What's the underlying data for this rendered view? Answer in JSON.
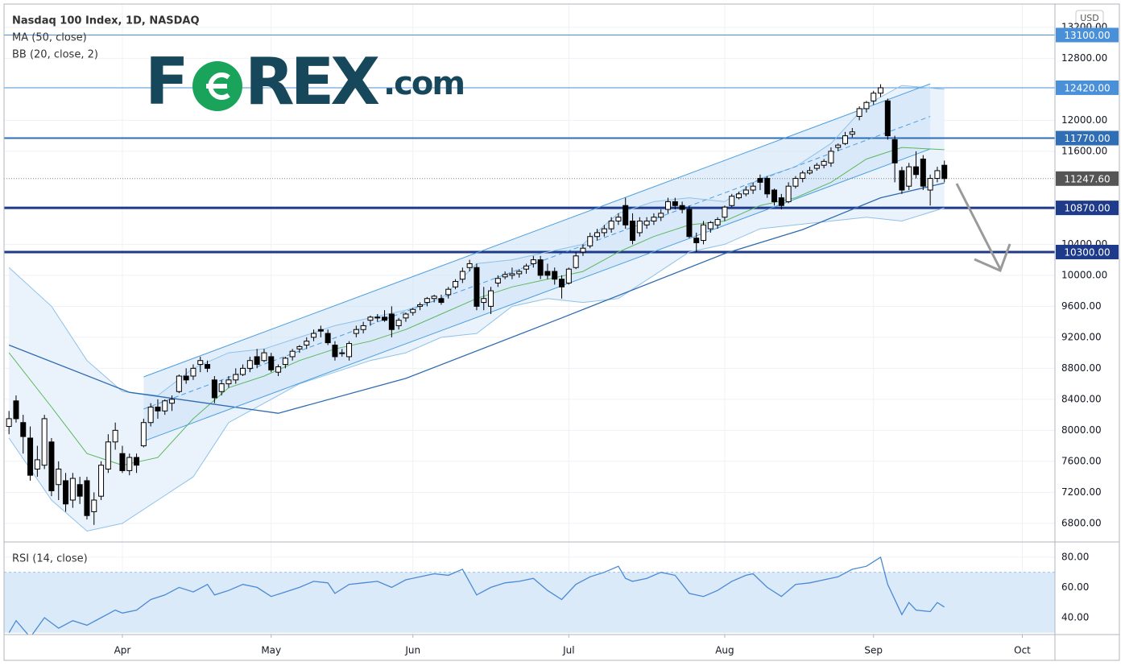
{
  "chart_data": {
    "type": "candlestick",
    "title": "Nasdaq 100 Index, 1D, NASDAQ",
    "currency": "USD",
    "logo": {
      "left": "F",
      "right": "REX",
      "suffix": ".com"
    },
    "x": [
      -16,
      -15,
      -14,
      -13,
      -12,
      -11,
      -10,
      -9,
      -8,
      -7,
      -6,
      -5,
      -4,
      -3,
      -2,
      -1,
      0,
      1,
      2,
      3,
      4,
      5,
      6,
      7,
      8,
      9,
      10,
      11,
      12,
      13,
      14,
      15,
      16,
      17,
      18,
      19,
      20,
      21,
      22,
      23,
      24,
      25,
      26,
      27,
      28,
      29,
      30,
      31,
      32,
      33,
      34,
      35,
      36,
      37,
      38,
      39,
      40,
      41,
      42,
      43,
      44,
      45,
      46,
      47,
      48,
      49,
      50,
      51,
      52,
      53,
      54,
      55,
      56,
      57,
      58,
      59,
      60,
      61,
      62,
      63,
      64,
      65,
      66,
      67,
      68,
      69,
      70,
      71,
      72,
      73,
      74,
      75,
      76,
      77,
      78,
      79,
      80,
      81,
      82,
      83,
      84,
      85,
      86,
      87,
      88,
      89,
      90,
      91,
      92,
      93,
      94,
      95,
      96,
      97,
      98,
      99,
      100,
      101,
      102,
      103,
      104,
      105,
      106,
      107,
      108,
      109,
      110,
      111,
      112,
      113,
      114,
      115,
      116
    ],
    "candles": [
      [
        8050,
        8250,
        7950,
        8150
      ],
      [
        8380,
        8450,
        8100,
        8150
      ],
      [
        8100,
        8200,
        7700,
        7920
      ],
      [
        7900,
        8050,
        7350,
        7420
      ],
      [
        7500,
        7800,
        7400,
        7620
      ],
      [
        7550,
        8200,
        7500,
        8150
      ],
      [
        7850,
        7900,
        7150,
        7220
      ],
      [
        7300,
        7600,
        7100,
        7500
      ],
      [
        7350,
        7450,
        6950,
        7050
      ],
      [
        7100,
        7450,
        7000,
        7380
      ],
      [
        7300,
        7400,
        7050,
        7150
      ],
      [
        7350,
        7400,
        6850,
        6900
      ],
      [
        6950,
        7200,
        6780,
        7100
      ],
      [
        7150,
        7600,
        7100,
        7550
      ],
      [
        7500,
        7950,
        7450,
        7850
      ],
      [
        7850,
        8100,
        7750,
        8000
      ],
      [
        7700,
        7800,
        7450,
        7480
      ],
      [
        7480,
        7700,
        7420,
        7650
      ],
      [
        7650,
        7700,
        7450,
        7550
      ],
      [
        7800,
        8150,
        7780,
        8100
      ],
      [
        8100,
        8350,
        8050,
        8300
      ],
      [
        8300,
        8400,
        8150,
        8250
      ],
      [
        8250,
        8400,
        8200,
        8380
      ],
      [
        8350,
        8450,
        8250,
        8400
      ],
      [
        8500,
        8720,
        8480,
        8700
      ],
      [
        8700,
        8800,
        8600,
        8650
      ],
      [
        8700,
        8850,
        8650,
        8800
      ],
      [
        8850,
        8950,
        8750,
        8900
      ],
      [
        8850,
        8900,
        8750,
        8800
      ],
      [
        8650,
        8700,
        8350,
        8420
      ],
      [
        8500,
        8650,
        8450,
        8600
      ],
      [
        8600,
        8700,
        8550,
        8650
      ],
      [
        8650,
        8800,
        8600,
        8720
      ],
      [
        8720,
        8850,
        8700,
        8800
      ],
      [
        8800,
        8950,
        8750,
        8900
      ],
      [
        8950,
        9050,
        8800,
        8850
      ],
      [
        8900,
        9050,
        8880,
        9000
      ],
      [
        8950,
        9000,
        8750,
        8780
      ],
      [
        8750,
        8850,
        8700,
        8820
      ],
      [
        8850,
        8950,
        8800,
        8930
      ],
      [
        8950,
        9050,
        8900,
        9020
      ],
      [
        9050,
        9100,
        9000,
        9080
      ],
      [
        9100,
        9200,
        9050,
        9150
      ],
      [
        9200,
        9300,
        9150,
        9250
      ],
      [
        9300,
        9350,
        9200,
        9280
      ],
      [
        9250,
        9300,
        9100,
        9130
      ],
      [
        9100,
        9150,
        8900,
        8950
      ],
      [
        9000,
        9050,
        8950,
        9000
      ],
      [
        8950,
        9150,
        8900,
        9120
      ],
      [
        9250,
        9350,
        9200,
        9300
      ],
      [
        9300,
        9400,
        9250,
        9350
      ],
      [
        9420,
        9480,
        9350,
        9460
      ],
      [
        9450,
        9500,
        9400,
        9460
      ],
      [
        9460,
        9550,
        9400,
        9420
      ],
      [
        9500,
        9600,
        9200,
        9300
      ],
      [
        9350,
        9450,
        9300,
        9420
      ],
      [
        9450,
        9520,
        9400,
        9500
      ],
      [
        9520,
        9580,
        9480,
        9560
      ],
      [
        9600,
        9650,
        9550,
        9620
      ],
      [
        9650,
        9720,
        9600,
        9700
      ],
      [
        9700,
        9750,
        9650,
        9730
      ],
      [
        9700,
        9750,
        9620,
        9650
      ],
      [
        9750,
        9850,
        9700,
        9820
      ],
      [
        9850,
        9950,
        9820,
        9920
      ],
      [
        9950,
        10100,
        9900,
        10050
      ],
      [
        10100,
        10200,
        10050,
        10150
      ],
      [
        10100,
        10150,
        9550,
        9600
      ],
      [
        9650,
        9850,
        9550,
        9700
      ],
      [
        9600,
        9850,
        9500,
        9800
      ],
      [
        9900,
        10000,
        9850,
        9960
      ],
      [
        9980,
        10050,
        9950,
        10010
      ],
      [
        10000,
        10100,
        9950,
        10020
      ],
      [
        10020,
        10080,
        9970,
        10050
      ],
      [
        10080,
        10150,
        10020,
        10120
      ],
      [
        10150,
        10250,
        10100,
        10200
      ],
      [
        10200,
        10250,
        9950,
        10000
      ],
      [
        10050,
        10150,
        9950,
        10000
      ],
      [
        10050,
        10100,
        9880,
        9950
      ],
      [
        9950,
        10000,
        9700,
        9850
      ],
      [
        9900,
        10100,
        9880,
        10080
      ],
      [
        10100,
        10300,
        10080,
        10250
      ],
      [
        10300,
        10400,
        10250,
        10350
      ],
      [
        10380,
        10550,
        10350,
        10500
      ],
      [
        10500,
        10600,
        10450,
        10550
      ],
      [
        10550,
        10650,
        10500,
        10600
      ],
      [
        10600,
        10750,
        10550,
        10700
      ],
      [
        10700,
        10800,
        10650,
        10750
      ],
      [
        10900,
        11000,
        10600,
        10650
      ],
      [
        10700,
        10800,
        10400,
        10450
      ],
      [
        10550,
        10750,
        10500,
        10700
      ],
      [
        10650,
        10750,
        10600,
        10700
      ],
      [
        10700,
        10800,
        10650,
        10750
      ],
      [
        10750,
        10850,
        10700,
        10800
      ],
      [
        10850,
        11000,
        10800,
        10950
      ],
      [
        10950,
        11000,
        10850,
        10900
      ],
      [
        10900,
        10950,
        10800,
        10850
      ],
      [
        10850,
        10900,
        10480,
        10500
      ],
      [
        10480,
        10550,
        10300,
        10420
      ],
      [
        10450,
        10700,
        10400,
        10650
      ],
      [
        10600,
        10700,
        10550,
        10680
      ],
      [
        10650,
        10750,
        10600,
        10720
      ],
      [
        10750,
        10900,
        10700,
        10880
      ],
      [
        10900,
        11050,
        10880,
        11020
      ],
      [
        11000,
        11080,
        10980,
        11050
      ],
      [
        11050,
        11150,
        11020,
        11100
      ],
      [
        11100,
        11200,
        11050,
        11150
      ],
      [
        11250,
        11300,
        11100,
        11200
      ],
      [
        11250,
        11280,
        11000,
        11050
      ],
      [
        11100,
        11120,
        10900,
        10950
      ],
      [
        11000,
        11050,
        10850,
        10900
      ],
      [
        10950,
        11200,
        10930,
        11150
      ],
      [
        11150,
        11280,
        11120,
        11250
      ],
      [
        11250,
        11350,
        11200,
        11320
      ],
      [
        11320,
        11400,
        11300,
        11350
      ],
      [
        11380,
        11450,
        11350,
        11420
      ],
      [
        11420,
        11500,
        11380,
        11470
      ],
      [
        11450,
        11650,
        11400,
        11600
      ],
      [
        11650,
        11700,
        11600,
        11680
      ],
      [
        11700,
        11850,
        11680,
        11800
      ],
      [
        11820,
        11900,
        11780,
        11850
      ],
      [
        12050,
        12180,
        12000,
        12150
      ],
      [
        12150,
        12250,
        12100,
        12230
      ],
      [
        12250,
        12380,
        12200,
        12350
      ],
      [
        12350,
        12465,
        12300,
        12420
      ],
      [
        12250,
        12280,
        11750,
        11800
      ],
      [
        11750,
        11800,
        11200,
        11450
      ],
      [
        11350,
        11400,
        11050,
        11100
      ],
      [
        11150,
        11450,
        11100,
        11400
      ],
      [
        11400,
        11600,
        11250,
        11300
      ],
      [
        11500,
        11550,
        11100,
        11150
      ],
      [
        11100,
        11300,
        10900,
        11250
      ],
      [
        11250,
        11400,
        11200,
        11350
      ],
      [
        11420,
        11480,
        11200,
        11248
      ]
    ],
    "xlim": [
      -16.7,
      131.6
    ],
    "xticks": [
      {
        "value": 0,
        "label": "Apr"
      },
      {
        "value": 21,
        "label": "May"
      },
      {
        "value": 41,
        "label": "Jun"
      },
      {
        "value": 63,
        "label": "Jul"
      },
      {
        "value": 85,
        "label": "Aug"
      },
      {
        "value": 106,
        "label": "Sep"
      },
      {
        "value": 127,
        "label": "Oct"
      }
    ],
    "ylim": [
      6570,
      13500
    ],
    "yticks": [
      {
        "value": 13200,
        "label": "13200.00"
      },
      {
        "value": 12800,
        "label": "12800.00"
      },
      {
        "value": 12000,
        "label": "12000.00"
      },
      {
        "value": 11600,
        "label": "11600.00"
      },
      {
        "value": 10400,
        "label": "10400.00"
      },
      {
        "value": 10000,
        "label": "10000.00"
      },
      {
        "value": 9600,
        "label": "9600.00"
      },
      {
        "value": 9200,
        "label": "9200.00"
      },
      {
        "value": 8800,
        "label": "8800.00"
      },
      {
        "value": 8400,
        "label": "8400.00"
      },
      {
        "value": 8000,
        "label": "8000.00"
      },
      {
        "value": 7600,
        "label": "7600.00"
      },
      {
        "value": 7200,
        "label": "7200.00"
      },
      {
        "value": 6800,
        "label": "6800.00"
      }
    ],
    "grid": true,
    "ma": {
      "name": "MA (50, close)",
      "color": "#2e6bb0",
      "x": [
        -16,
        1,
        22,
        40,
        62,
        85,
        96,
        107,
        116
      ],
      "values": [
        9100,
        8490,
        8220,
        8670,
        9450,
        10280,
        10590,
        11000,
        11190
      ]
    },
    "bb": {
      "name": "BB (20, close, 2)",
      "color": "#8fc1e8",
      "basis_color": "#5cb85c",
      "fill": "#e8f2fc",
      "x": [
        -16,
        -10,
        -5,
        0,
        5,
        10,
        15,
        20,
        25,
        30,
        35,
        40,
        45,
        50,
        55,
        60,
        65,
        70,
        75,
        80,
        85,
        90,
        95,
        100,
        105,
        110,
        116
      ],
      "upper": [
        10100,
        9600,
        8900,
        8500,
        8450,
        8800,
        9000,
        9050,
        9200,
        9350,
        9450,
        9550,
        9700,
        10150,
        10200,
        10300,
        10400,
        10800,
        10950,
        11000,
        10950,
        11250,
        11400,
        11700,
        12200,
        12450,
        12400
      ],
      "basis": [
        9000,
        8300,
        7700,
        7550,
        7650,
        8150,
        8550,
        8700,
        8900,
        9050,
        9150,
        9300,
        9500,
        9700,
        9850,
        9950,
        10050,
        10300,
        10500,
        10650,
        10700,
        10900,
        11000,
        11200,
        11500,
        11650,
        11620
      ],
      "lower": [
        7900,
        7100,
        6700,
        6800,
        7100,
        7400,
        8100,
        8350,
        8600,
        8750,
        8900,
        9000,
        9200,
        9250,
        9600,
        9700,
        9650,
        9700,
        10000,
        10300,
        10400,
        10600,
        10650,
        10700,
        10750,
        10700,
        10870
      ]
    },
    "channel": {
      "color": "#4a9ee0",
      "fill": "#cfe3f7",
      "x": [
        3,
        114
      ],
      "upper": [
        8690,
        12470
      ],
      "lower": [
        7860,
        11630
      ]
    },
    "levels": [
      {
        "value": 13100,
        "label": "13100.00",
        "color": "#4a90d9",
        "weight": "thin"
      },
      {
        "value": 12420,
        "label": "12420.00",
        "color": "#4a90d9",
        "weight": "thin"
      },
      {
        "value": 11770,
        "label": "11770.00",
        "color": "#2f6db5",
        "weight": "medium"
      },
      {
        "value": 10870,
        "label": "10870.00",
        "color": "#1e3a8a",
        "weight": "thick"
      },
      {
        "value": 10300,
        "label": "10300.00",
        "color": "#1e3a8a",
        "weight": "thick"
      }
    ],
    "last_price": {
      "value": 11247.6,
      "label": "11247.60",
      "color": "#555555"
    },
    "rsi": {
      "name": "RSI (14, close)",
      "color": "#4a8ad4",
      "band": [
        30,
        70
      ],
      "band_fill": "#dbeaf8",
      "ylim": [
        28.8,
        89
      ],
      "yticks": [
        {
          "value": 80,
          "label": "80.00"
        },
        {
          "value": 60,
          "label": "60.00"
        },
        {
          "value": 40,
          "label": "40.00"
        }
      ],
      "x": [
        -16,
        -15,
        -13,
        -11,
        -9,
        -7,
        -5,
        -3,
        -1,
        0,
        2,
        4,
        6,
        8,
        10,
        12,
        13,
        15,
        17,
        19,
        21,
        23,
        25,
        27,
        29,
        30,
        32,
        34,
        36,
        38,
        40,
        42,
        44,
        46,
        48,
        50,
        52,
        54,
        56,
        58,
        60,
        62,
        64,
        66,
        68,
        70,
        71,
        72,
        74,
        76,
        78,
        80,
        82,
        84,
        86,
        88,
        89,
        91,
        93,
        95,
        97,
        99,
        101,
        103,
        105,
        107,
        108,
        110,
        111,
        112,
        114,
        115,
        116
      ],
      "values": [
        30,
        38,
        27,
        40,
        33,
        38,
        35,
        40,
        45,
        43,
        45,
        52,
        55,
        60,
        57,
        62,
        55,
        58,
        62,
        60,
        54,
        57,
        60,
        64,
        63,
        56,
        62,
        63,
        64,
        60,
        65,
        67,
        69,
        68,
        72,
        55,
        60,
        63,
        64,
        66,
        58,
        52,
        62,
        67,
        70,
        74,
        66,
        64,
        66,
        70,
        68,
        56,
        54,
        58,
        64,
        68,
        69,
        60,
        54,
        62,
        63,
        65,
        67,
        72,
        74,
        80,
        62,
        42,
        50,
        45,
        44,
        50,
        47
      ]
    }
  }
}
